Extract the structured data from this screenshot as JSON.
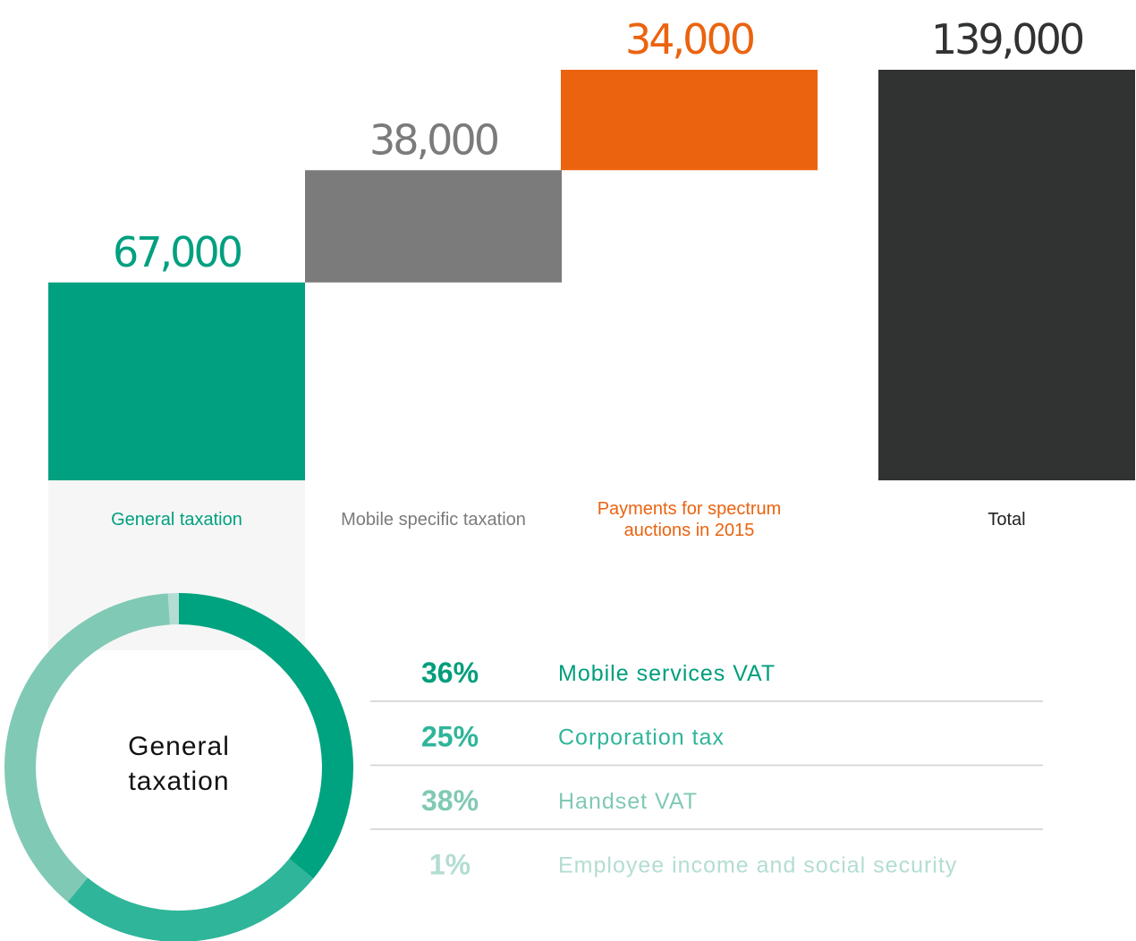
{
  "chart_data": [
    {
      "type": "waterfall",
      "categories": [
        "General taxation",
        "Mobile specific taxation",
        "Payments for spectrum auctions in 2015",
        "Total"
      ],
      "values": [
        67000,
        38000,
        34000,
        139000
      ],
      "value_labels": [
        "67,000",
        "38,000",
        "34,000",
        "139,000"
      ],
      "colors": [
        "#00a080",
        "#7b7b7b",
        "#eb630f",
        "#313232"
      ]
    },
    {
      "type": "donut",
      "title": "General taxation",
      "categories": [
        "Mobile services VAT",
        "Corporation tax",
        "Handset VAT",
        "Employee income and social security"
      ],
      "values": [
        36,
        25,
        38,
        1
      ],
      "value_labels": [
        "36%",
        "25%",
        "38%",
        "1%"
      ],
      "colors": [
        "#00a37f",
        "#2fb59a",
        "#80c9b5",
        "#b3ddd2"
      ]
    }
  ]
}
